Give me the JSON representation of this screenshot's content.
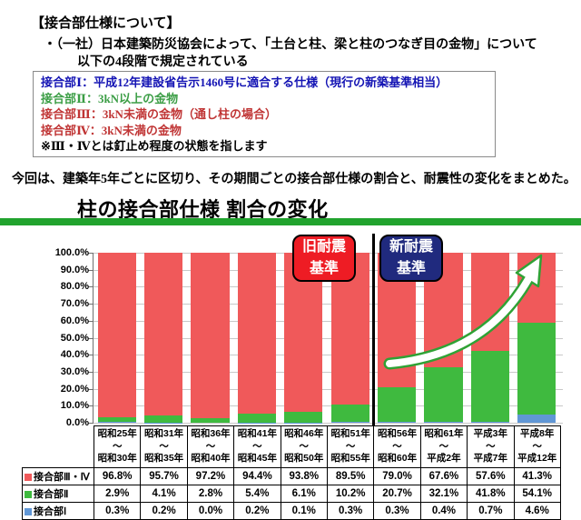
{
  "doc": {
    "heading": "【接合部仕様について】",
    "bullet_line1": "・（一社）日本建築防災協会によって、「土台と柱、梁と柱のつなぎ目の金物」について",
    "bullet_line2": "以下の4段階で規定されている",
    "criteria": [
      {
        "text": "接合部Ⅰ：平成12年建設省告示1460号に適合する仕様（現行の新築基準相当）",
        "color": "#1414b4"
      },
      {
        "text": "接合部Ⅱ：3kN以上の金物",
        "color": "#3c9e46"
      },
      {
        "text": "接合部Ⅲ：3kN未満の金物（通し柱の場合）",
        "color": "#c03535"
      },
      {
        "text": "接合部Ⅳ：3kN未満の金物",
        "color": "#c03535"
      }
    ],
    "note": {
      "text": "※Ⅲ・Ⅳとは釘止め程度の状態を指します",
      "color": "#000000"
    },
    "intro": "今回は、建築年5年ごとに区切り、その期間ごとの接合部仕様の割合と、耐震性の変化をまとめた。"
  },
  "chart": {
    "title": "柱の接合部仕様 割合の変化",
    "badge_old": {
      "line1": "旧耐震",
      "line2": "基準",
      "bg": "#ee1c24"
    },
    "badge_new": {
      "line1": "新耐震",
      "line2": "基準",
      "bg": "#202a7e"
    },
    "divider_note": "旧耐震基準と新耐震基準の境界（昭和55年／昭和56年の間）の黒い縦線",
    "arrow_note": "接合部Ⅱ比率の上昇を示す緑縁の白い矢印"
  },
  "chart_data": {
    "type": "bar",
    "stacked": true,
    "title": "柱の接合部仕様 割合の変化",
    "ylim": [
      0,
      100
    ],
    "grid": true,
    "y_tick_labels": [
      "100.0%",
      "90.0%",
      "80.0%",
      "70.0%",
      "60.0%",
      "50.0%",
      "40.0%",
      "30.0%",
      "20.0%",
      "10.0%",
      "0.0%"
    ],
    "category_separator": "～",
    "categories": [
      {
        "from": "昭和25年",
        "to": "昭和30年"
      },
      {
        "from": "昭和31年",
        "to": "昭和35年"
      },
      {
        "from": "昭和36年",
        "to": "昭和40年"
      },
      {
        "from": "昭和41年",
        "to": "昭和45年"
      },
      {
        "from": "昭和46年",
        "to": "昭和50年"
      },
      {
        "from": "昭和51年",
        "to": "昭和55年"
      },
      {
        "from": "昭和56年",
        "to": "昭和60年"
      },
      {
        "from": "昭和61年",
        "to": "平成2年"
      },
      {
        "from": "平成3年",
        "to": "平成7年"
      },
      {
        "from": "平成8年",
        "to": "平成12年"
      }
    ],
    "series": [
      {
        "name": "接合部Ⅲ・Ⅳ",
        "color": "#f0595a",
        "values": [
          96.8,
          95.7,
          97.2,
          94.4,
          93.8,
          89.5,
          79.0,
          67.6,
          57.6,
          41.3
        ]
      },
      {
        "name": "接合部Ⅱ",
        "color": "#3fba3f",
        "values": [
          2.9,
          4.1,
          2.8,
          5.4,
          6.1,
          10.2,
          20.7,
          32.1,
          41.8,
          54.1
        ]
      },
      {
        "name": "接合部Ⅰ",
        "color": "#6097d6",
        "values": [
          0.3,
          0.2,
          0.0,
          0.2,
          0.1,
          0.3,
          0.3,
          0.4,
          0.7,
          4.6
        ]
      }
    ],
    "stack_order_bottom_to_top": [
      "接合部Ⅰ",
      "接合部Ⅱ",
      "接合部Ⅲ・Ⅳ"
    ],
    "legend_position": "table-left-column"
  },
  "colors": {
    "title_rule_green": "#21a32e",
    "gridline": "#c8c8c8",
    "axis": "#707070",
    "divider": "#000000",
    "arrow_green": "#2fa235"
  }
}
